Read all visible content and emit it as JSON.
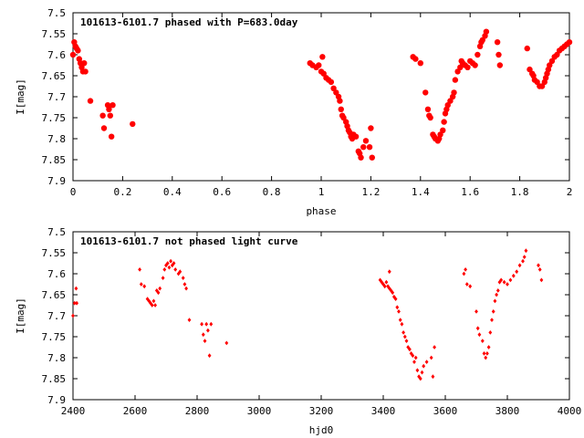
{
  "chart_data": [
    {
      "type": "scatter",
      "title": "101613-6101.7 phased with P=683.0day",
      "xlabel": "phase",
      "ylabel": "I[mag]",
      "xlim": [
        0,
        2
      ],
      "ylim": [
        7.9,
        7.5
      ],
      "y_inverted": true,
      "grid": false,
      "marker": "filled-circle",
      "color": "#ff0000",
      "x_ticks": [
        "0",
        "0.2",
        "0.4",
        "0.6",
        "0.8",
        "1",
        "1.2",
        "1.4",
        "1.6",
        "1.8",
        "2"
      ],
      "y_ticks": [
        "7.5",
        "7.55",
        "7.6",
        "7.65",
        "7.7",
        "7.75",
        "7.8",
        "7.85",
        "7.9"
      ],
      "points": [
        [
          0.0,
          7.6
        ],
        [
          0.005,
          7.57
        ],
        [
          0.01,
          7.58
        ],
        [
          0.015,
          7.585
        ],
        [
          0.02,
          7.59
        ],
        [
          0.025,
          7.61
        ],
        [
          0.03,
          7.62
        ],
        [
          0.035,
          7.63
        ],
        [
          0.04,
          7.64
        ],
        [
          0.045,
          7.62
        ],
        [
          0.05,
          7.64
        ],
        [
          0.07,
          7.71
        ],
        [
          0.12,
          7.745
        ],
        [
          0.125,
          7.775
        ],
        [
          0.14,
          7.72
        ],
        [
          0.145,
          7.73
        ],
        [
          0.15,
          7.745
        ],
        [
          0.155,
          7.795
        ],
        [
          0.16,
          7.72
        ],
        [
          0.24,
          7.765
        ],
        [
          0.955,
          7.62
        ],
        [
          0.965,
          7.625
        ],
        [
          0.98,
          7.63
        ],
        [
          0.99,
          7.625
        ],
        [
          1.0,
          7.64
        ],
        [
          1.005,
          7.605
        ],
        [
          1.01,
          7.645
        ],
        [
          1.02,
          7.655
        ],
        [
          1.03,
          7.66
        ],
        [
          1.04,
          7.665
        ],
        [
          1.05,
          7.68
        ],
        [
          1.06,
          7.69
        ],
        [
          1.07,
          7.7
        ],
        [
          1.075,
          7.71
        ],
        [
          1.08,
          7.73
        ],
        [
          1.085,
          7.745
        ],
        [
          1.09,
          7.75
        ],
        [
          1.1,
          7.76
        ],
        [
          1.105,
          7.77
        ],
        [
          1.11,
          7.78
        ],
        [
          1.115,
          7.785
        ],
        [
          1.12,
          7.795
        ],
        [
          1.125,
          7.8
        ],
        [
          1.13,
          7.79
        ],
        [
          1.14,
          7.795
        ],
        [
          1.15,
          7.83
        ],
        [
          1.155,
          7.835
        ],
        [
          1.16,
          7.845
        ],
        [
          1.17,
          7.82
        ],
        [
          1.18,
          7.805
        ],
        [
          1.195,
          7.82
        ],
        [
          1.205,
          7.845
        ],
        [
          1.2,
          7.775
        ],
        [
          1.37,
          7.605
        ],
        [
          1.38,
          7.61
        ],
        [
          1.4,
          7.62
        ],
        [
          1.42,
          7.69
        ],
        [
          1.43,
          7.73
        ],
        [
          1.435,
          7.745
        ],
        [
          1.44,
          7.75
        ],
        [
          1.45,
          7.79
        ],
        [
          1.455,
          7.795
        ],
        [
          1.46,
          7.8
        ],
        [
          1.47,
          7.805
        ],
        [
          1.475,
          7.8
        ],
        [
          1.48,
          7.79
        ],
        [
          1.49,
          7.78
        ],
        [
          1.495,
          7.76
        ],
        [
          1.5,
          7.74
        ],
        [
          1.505,
          7.73
        ],
        [
          1.51,
          7.72
        ],
        [
          1.52,
          7.71
        ],
        [
          1.53,
          7.7
        ],
        [
          1.535,
          7.69
        ],
        [
          1.54,
          7.66
        ],
        [
          1.55,
          7.64
        ],
        [
          1.56,
          7.63
        ],
        [
          1.565,
          7.615
        ],
        [
          1.57,
          7.62
        ],
        [
          1.58,
          7.625
        ],
        [
          1.59,
          7.63
        ],
        [
          1.6,
          7.615
        ],
        [
          1.61,
          7.62
        ],
        [
          1.62,
          7.625
        ],
        [
          1.63,
          7.6
        ],
        [
          1.64,
          7.58
        ],
        [
          1.645,
          7.57
        ],
        [
          1.65,
          7.565
        ],
        [
          1.66,
          7.555
        ],
        [
          1.665,
          7.545
        ],
        [
          1.71,
          7.57
        ],
        [
          1.715,
          7.6
        ],
        [
          1.72,
          7.625
        ],
        [
          1.83,
          7.585
        ],
        [
          1.84,
          7.635
        ],
        [
          1.85,
          7.645
        ],
        [
          1.855,
          7.65
        ],
        [
          1.86,
          7.66
        ],
        [
          1.87,
          7.665
        ],
        [
          1.88,
          7.675
        ],
        [
          1.89,
          7.675
        ],
        [
          1.9,
          7.665
        ],
        [
          1.905,
          7.655
        ],
        [
          1.91,
          7.645
        ],
        [
          1.915,
          7.635
        ],
        [
          1.92,
          7.625
        ],
        [
          1.93,
          7.615
        ],
        [
          1.94,
          7.605
        ],
        [
          1.95,
          7.6
        ],
        [
          1.96,
          7.59
        ],
        [
          1.97,
          7.585
        ],
        [
          1.98,
          7.58
        ],
        [
          1.99,
          7.575
        ],
        [
          2.0,
          7.57
        ]
      ]
    },
    {
      "type": "scatter",
      "title": "101613-6101.7 not phased light curve",
      "xlabel": "hjd0",
      "ylabel": "I[mag]",
      "xlim": [
        2400,
        4000
      ],
      "ylim": [
        7.9,
        7.5
      ],
      "y_inverted": true,
      "grid": false,
      "marker": "small-diamond",
      "color": "#ff0000",
      "x_ticks": [
        "2400",
        "2600",
        "2800",
        "3000",
        "3200",
        "3400",
        "3600",
        "3800",
        "4000"
      ],
      "y_ticks": [
        "7.5",
        "7.55",
        "7.6",
        "7.65",
        "7.7",
        "7.75",
        "7.8",
        "7.85",
        "7.9"
      ],
      "points": [
        [
          2400,
          7.7
        ],
        [
          2405,
          7.67
        ],
        [
          2410,
          7.635
        ],
        [
          2412,
          7.67
        ],
        [
          2615,
          7.59
        ],
        [
          2620,
          7.625
        ],
        [
          2630,
          7.63
        ],
        [
          2640,
          7.66
        ],
        [
          2645,
          7.665
        ],
        [
          2650,
          7.67
        ],
        [
          2655,
          7.675
        ],
        [
          2660,
          7.665
        ],
        [
          2665,
          7.675
        ],
        [
          2670,
          7.64
        ],
        [
          2675,
          7.645
        ],
        [
          2680,
          7.635
        ],
        [
          2690,
          7.61
        ],
        [
          2695,
          7.59
        ],
        [
          2700,
          7.58
        ],
        [
          2705,
          7.575
        ],
        [
          2710,
          7.585
        ],
        [
          2715,
          7.57
        ],
        [
          2720,
          7.58
        ],
        [
          2725,
          7.575
        ],
        [
          2730,
          7.59
        ],
        [
          2740,
          7.6
        ],
        [
          2745,
          7.595
        ],
        [
          2755,
          7.61
        ],
        [
          2760,
          7.625
        ],
        [
          2765,
          7.635
        ],
        [
          2775,
          7.71
        ],
        [
          2815,
          7.72
        ],
        [
          2820,
          7.745
        ],
        [
          2825,
          7.76
        ],
        [
          2830,
          7.72
        ],
        [
          2835,
          7.735
        ],
        [
          2840,
          7.795
        ],
        [
          2845,
          7.72
        ],
        [
          2895,
          7.765
        ],
        [
          3390,
          7.615
        ],
        [
          3395,
          7.62
        ],
        [
          3400,
          7.625
        ],
        [
          3405,
          7.63
        ],
        [
          3410,
          7.62
        ],
        [
          3415,
          7.63
        ],
        [
          3420,
          7.635
        ],
        [
          3425,
          7.64
        ],
        [
          3430,
          7.645
        ],
        [
          3435,
          7.655
        ],
        [
          3440,
          7.66
        ],
        [
          3445,
          7.68
        ],
        [
          3450,
          7.69
        ],
        [
          3455,
          7.71
        ],
        [
          3460,
          7.72
        ],
        [
          3465,
          7.74
        ],
        [
          3470,
          7.75
        ],
        [
          3475,
          7.76
        ],
        [
          3480,
          7.775
        ],
        [
          3485,
          7.78
        ],
        [
          3490,
          7.79
        ],
        [
          3495,
          7.795
        ],
        [
          3500,
          7.81
        ],
        [
          3505,
          7.8
        ],
        [
          3510,
          7.83
        ],
        [
          3515,
          7.845
        ],
        [
          3520,
          7.85
        ],
        [
          3525,
          7.835
        ],
        [
          3530,
          7.82
        ],
        [
          3540,
          7.81
        ],
        [
          3555,
          7.8
        ],
        [
          3560,
          7.845
        ],
        [
          3565,
          7.775
        ],
        [
          3420,
          7.595
        ],
        [
          3660,
          7.6
        ],
        [
          3665,
          7.59
        ],
        [
          3670,
          7.625
        ],
        [
          3680,
          7.63
        ],
        [
          3700,
          7.69
        ],
        [
          3705,
          7.73
        ],
        [
          3710,
          7.745
        ],
        [
          3720,
          7.76
        ],
        [
          3725,
          7.79
        ],
        [
          3730,
          7.8
        ],
        [
          3735,
          7.79
        ],
        [
          3740,
          7.775
        ],
        [
          3745,
          7.74
        ],
        [
          3750,
          7.71
        ],
        [
          3755,
          7.69
        ],
        [
          3760,
          7.665
        ],
        [
          3765,
          7.65
        ],
        [
          3770,
          7.64
        ],
        [
          3775,
          7.62
        ],
        [
          3780,
          7.615
        ],
        [
          3790,
          7.62
        ],
        [
          3800,
          7.625
        ],
        [
          3810,
          7.615
        ],
        [
          3820,
          7.605
        ],
        [
          3830,
          7.595
        ],
        [
          3840,
          7.58
        ],
        [
          3850,
          7.57
        ],
        [
          3855,
          7.56
        ],
        [
          3860,
          7.545
        ],
        [
          3900,
          7.58
        ],
        [
          3905,
          7.59
        ],
        [
          3910,
          7.615
        ]
      ]
    }
  ]
}
